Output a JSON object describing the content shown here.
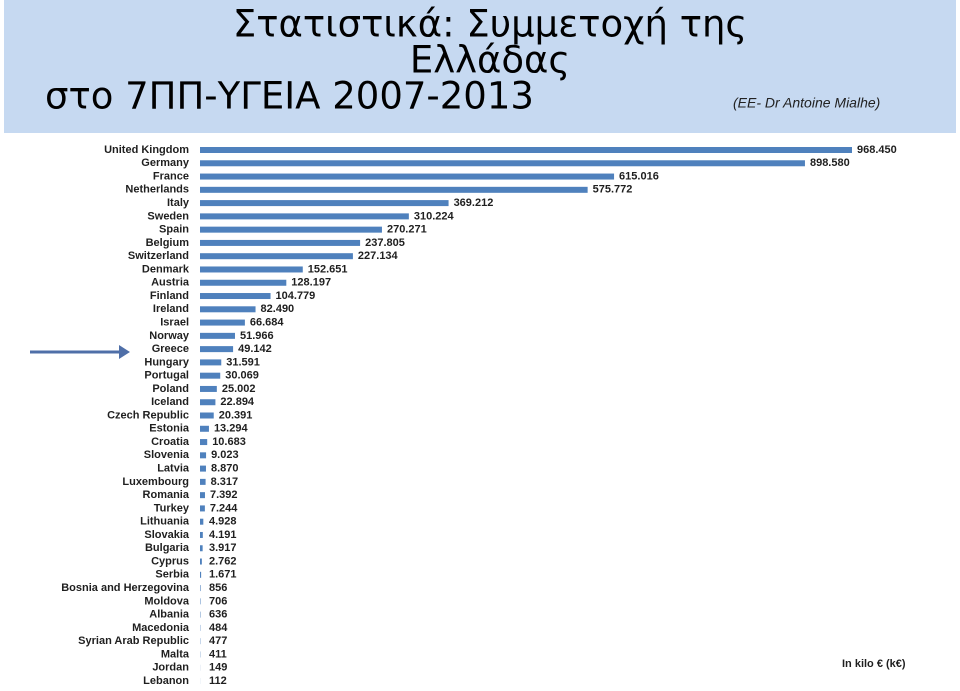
{
  "chart_data": {
    "type": "bar",
    "orientation": "horizontal",
    "title": [
      "Στατιστικά: Συμμετοχή της",
      "Ελλάδας",
      "στο 7ΠΠ-ΥΓΕΙΑ 2007-2013"
    ],
    "subtitle": "(ΕΕ- Dr Antoine Mialhe)",
    "unit_note": "In kilo € (k€)",
    "color": "#4f81bd",
    "categories": [
      "United Kingdom",
      "Germany",
      "France",
      "Netherlands",
      "Italy",
      "Sweden",
      "Spain",
      "Belgium",
      "Switzerland",
      "Denmark",
      "Austria",
      "Finland",
      "Ireland",
      "Israel",
      "Norway",
      "Greece",
      "Hungary",
      "Portugal",
      "Poland",
      "Iceland",
      "Czech Republic",
      "Estonia",
      "Croatia",
      "Slovenia",
      "Latvia",
      "Luxembourg",
      "Romania",
      "Turkey",
      "Lithuania",
      "Slovakia",
      "Bulgaria",
      "Cyprus",
      "Serbia",
      "Bosnia and Herzegovina",
      "Moldova",
      "Albania",
      "Macedonia",
      "Syrian Arab Republic",
      "Malta",
      "Jordan",
      "Lebanon"
    ],
    "values": [
      968450,
      898580,
      615016,
      575772,
      369212,
      310224,
      270271,
      237805,
      227134,
      152651,
      128197,
      104779,
      82490,
      66684,
      51966,
      49142,
      31591,
      30069,
      25002,
      22894,
      20391,
      13294,
      10683,
      9023,
      8870,
      8317,
      7392,
      7244,
      4928,
      4191,
      3917,
      2762,
      1671,
      856,
      706,
      636,
      484,
      477,
      411,
      149,
      112
    ],
    "value_labels": [
      "968.450",
      "898.580",
      "615.016",
      "575.772",
      "369.212",
      "310.224",
      "270.271",
      "237.805",
      "227.134",
      "152.651",
      "128.197",
      "104.779",
      "82.490",
      "66.684",
      "51.966",
      "49.142",
      "31.591",
      "30.069",
      "25.002",
      "22.894",
      "20.391",
      "13.294",
      "10.683",
      "9.023",
      "8.870",
      "8.317",
      "7.392",
      "7.244",
      "4.928",
      "4.191",
      "3.917",
      "2.762",
      "1.671",
      "856",
      "706",
      "636",
      "484",
      "477",
      "411",
      "149",
      "112"
    ]
  }
}
